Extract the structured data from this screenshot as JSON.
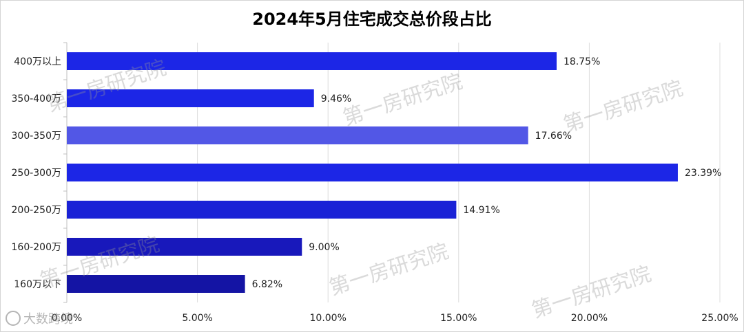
{
  "chart_data": {
    "type": "bar",
    "orientation": "horizontal",
    "title": "2024年5月住宅成交总价段占比",
    "categories": [
      "400万以上",
      "350-400万",
      "300-350万",
      "250-300万",
      "200-250万",
      "160-200万",
      "160万以下"
    ],
    "values": [
      18.75,
      9.46,
      17.66,
      23.39,
      14.91,
      9.0,
      6.82
    ],
    "data_labels": [
      "18.75%",
      "9.46%",
      "17.66%",
      "23.39%",
      "14.91%",
      "9.00%",
      "6.82%"
    ],
    "bar_colors": [
      "#1c26e6",
      "#1c26e6",
      "#5257e6",
      "#1c26e6",
      "#1a22d6",
      "#1818bb",
      "#1414a4"
    ],
    "xlim": [
      0,
      25
    ],
    "x_ticks": [
      0,
      5,
      10,
      15,
      20,
      25
    ],
    "x_tick_labels": [
      "0.00%",
      "5.00%",
      "10.00%",
      "15.00%",
      "20.00%",
      "25.00%"
    ],
    "grid": "vertical",
    "legend": "none"
  },
  "watermark": "第一房研究院",
  "source_badge": "大数跨境"
}
